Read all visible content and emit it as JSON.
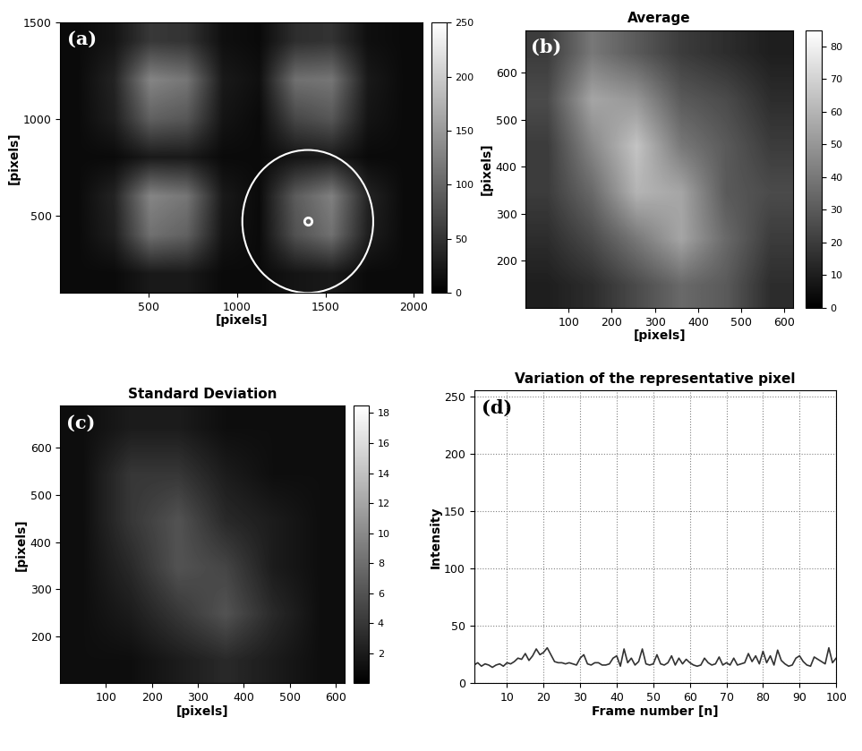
{
  "chart_data": [
    {
      "type": "heatmap",
      "panel_label": "(a)",
      "xlabel": "[pixels]",
      "ylabel": "[pixels]",
      "xlim": [
        1,
        2048
      ],
      "ylim": [
        100,
        1500
      ],
      "xticks": [
        500,
        1000,
        1500,
        2000
      ],
      "yticks": [
        500,
        1000,
        1500
      ],
      "cells": [
        [
          10,
          10,
          25,
          25,
          10,
          10,
          20,
          25,
          10,
          10
        ],
        [
          10,
          30,
          110,
          95,
          20,
          10,
          80,
          110,
          30,
          10
        ],
        [
          10,
          35,
          130,
          115,
          25,
          10,
          90,
          125,
          35,
          10
        ],
        [
          10,
          10,
          25,
          25,
          10,
          10,
          20,
          25,
          10,
          10
        ],
        [
          10,
          30,
          95,
          85,
          20,
          10,
          70,
          85,
          20,
          10
        ],
        [
          10,
          35,
          130,
          115,
          25,
          15,
          110,
          115,
          25,
          10
        ],
        [
          10,
          20,
          55,
          50,
          15,
          10,
          45,
          50,
          15,
          10
        ]
      ],
      "colorbar": {
        "range": [
          0,
          250
        ],
        "ticks": [
          0,
          50,
          100,
          150,
          200,
          250
        ]
      },
      "roi": {
        "center": [
          1400,
          470
        ],
        "radius": 370
      }
    },
    {
      "type": "heatmap",
      "panel_label": "(b)",
      "title": "Average",
      "xlabel": "[pixels]",
      "ylabel": "[pixels]",
      "xlim": [
        1,
        620
      ],
      "ylim": [
        100,
        690
      ],
      "xticks": [
        100,
        200,
        300,
        400,
        500,
        600
      ],
      "yticks": [
        200,
        300,
        400,
        500,
        600
      ],
      "cells": [
        [
          10,
          15,
          25,
          35,
          30,
          15
        ],
        [
          15,
          25,
          40,
          55,
          35,
          20
        ],
        [
          20,
          35,
          60,
          55,
          30,
          25
        ],
        [
          20,
          45,
          65,
          40,
          30,
          20
        ],
        [
          25,
          55,
          50,
          30,
          25,
          15
        ],
        [
          20,
          40,
          30,
          20,
          15,
          10
        ]
      ],
      "colorbar": {
        "range": [
          0,
          85
        ],
        "ticks": [
          0,
          10,
          20,
          30,
          40,
          50,
          60,
          70,
          80
        ]
      }
    },
    {
      "type": "heatmap",
      "panel_label": "(c)",
      "title": "Standard Deviation",
      "xlabel": "[pixels]",
      "ylabel": "[pixels]",
      "xlim": [
        1,
        620
      ],
      "ylim": [
        100,
        690
      ],
      "xticks": [
        100,
        200,
        300,
        400,
        500,
        600
      ],
      "yticks": [
        200,
        300,
        400,
        500,
        600
      ],
      "cells": [
        [
          1,
          1,
          2,
          3,
          2,
          1
        ],
        [
          1,
          2,
          4,
          6,
          3,
          1
        ],
        [
          1,
          3,
          6,
          5,
          2,
          1
        ],
        [
          1,
          4,
          6,
          3,
          2,
          1
        ],
        [
          1,
          4,
          4,
          2,
          1,
          1
        ],
        [
          1,
          2,
          2,
          1,
          1,
          1
        ]
      ],
      "colorbar": {
        "range": [
          0,
          18.5
        ],
        "ticks": [
          2,
          4,
          6,
          8,
          10,
          12,
          14,
          16,
          18
        ]
      }
    },
    {
      "type": "line",
      "panel_label": "(d)",
      "title": "Variation of the representative pixel",
      "xlabel": "Frame number [n]",
      "ylabel": "Intensity",
      "xlim": [
        1,
        100
      ],
      "ylim": [
        0,
        255
      ],
      "xticks": [
        10,
        20,
        30,
        40,
        50,
        60,
        70,
        80,
        90,
        100
      ],
      "yticks": [
        0,
        50,
        100,
        150,
        200,
        250
      ],
      "grid": true,
      "color": "#333333",
      "x": [
        1,
        2,
        3,
        4,
        5,
        6,
        7,
        8,
        9,
        10,
        11,
        12,
        13,
        14,
        15,
        16,
        17,
        18,
        19,
        20,
        21,
        22,
        23,
        24,
        25,
        26,
        27,
        28,
        29,
        30,
        31,
        32,
        33,
        34,
        35,
        36,
        37,
        38,
        39,
        40,
        41,
        42,
        43,
        44,
        45,
        46,
        47,
        48,
        49,
        50,
        51,
        52,
        53,
        54,
        55,
        56,
        57,
        58,
        59,
        60,
        61,
        62,
        63,
        64,
        65,
        66,
        67,
        68,
        69,
        70,
        71,
        72,
        73,
        74,
        75,
        76,
        77,
        78,
        79,
        80,
        81,
        82,
        83,
        84,
        85,
        86,
        87,
        88,
        89,
        90,
        91,
        92,
        93,
        94,
        95,
        96,
        97,
        98,
        99,
        100
      ],
      "values": [
        16,
        18,
        15,
        17,
        16,
        14,
        16,
        17,
        15,
        18,
        17,
        19,
        22,
        21,
        26,
        20,
        24,
        30,
        25,
        27,
        31,
        25,
        19,
        18,
        18,
        17,
        18,
        17,
        16,
        22,
        25,
        17,
        16,
        18,
        18,
        16,
        16,
        17,
        22,
        24,
        15,
        30,
        18,
        22,
        16,
        19,
        30,
        17,
        16,
        17,
        25,
        17,
        16,
        18,
        24,
        16,
        22,
        17,
        21,
        18,
        16,
        15,
        16,
        22,
        18,
        16,
        17,
        23,
        16,
        18,
        16,
        22,
        16,
        17,
        18,
        26,
        19,
        24,
        17,
        28,
        18,
        24,
        16,
        29,
        20,
        17,
        15,
        16,
        22,
        24,
        19,
        16,
        15,
        23,
        21,
        19,
        17,
        31,
        18,
        22
      ]
    }
  ]
}
